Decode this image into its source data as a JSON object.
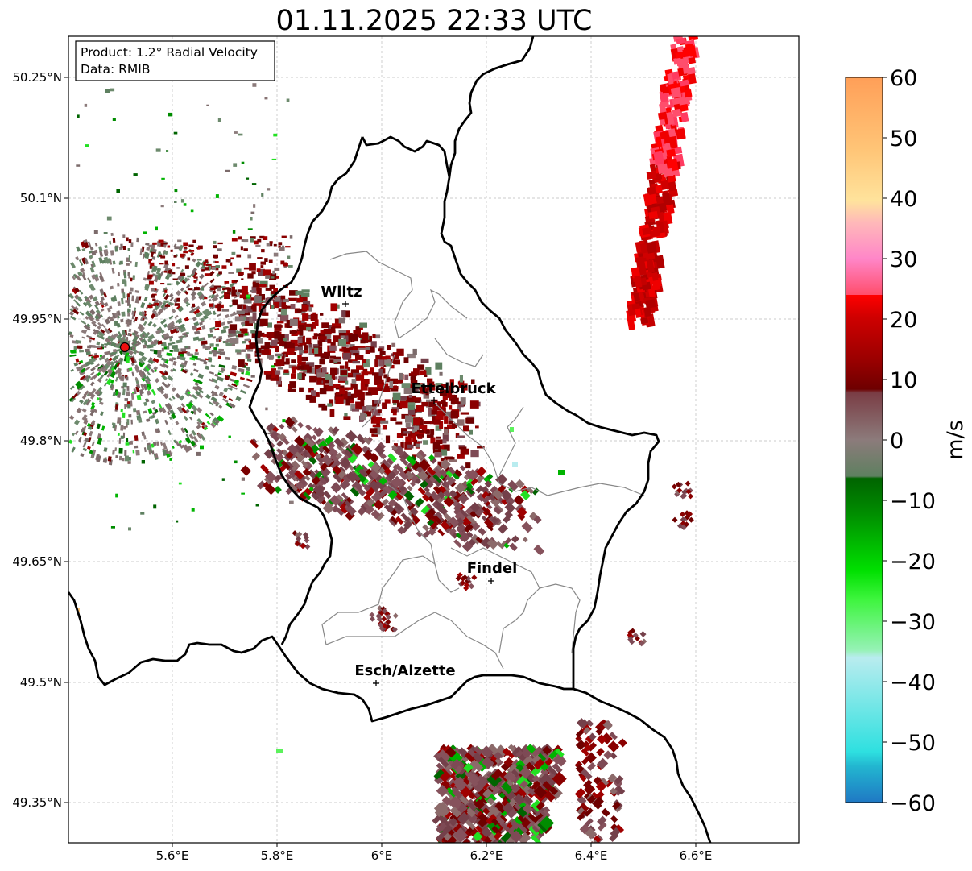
{
  "title": "01.11.2025 22:33 UTC",
  "info_box": {
    "product": "Product: 1.2° Radial Velocity",
    "data": "Data: RMIB"
  },
  "x_ticks": [
    "5.6°E",
    "5.8°E",
    "6°E",
    "6.2°E",
    "6.4°E",
    "6.6°E"
  ],
  "y_ticks": [
    "50.25°N",
    "50.1°N",
    "49.95°N",
    "49.8°N",
    "49.65°N",
    "49.5°N",
    "49.35°N"
  ],
  "cities": [
    {
      "name": "Wiltz"
    },
    {
      "name": "Ettelbruck"
    },
    {
      "name": "Findel"
    },
    {
      "name": "Esch/Alzette"
    }
  ],
  "colorbar": {
    "label": "m/s",
    "ticks": [
      "60",
      "50",
      "40",
      "30",
      "20",
      "10",
      "0",
      "−10",
      "−20",
      "−30",
      "−40",
      "−50",
      "−60"
    ],
    "range": [
      -60,
      60
    ],
    "colors": {
      "top_orange": "#ff9f58",
      "light_orange": "#ffc577",
      "pale_yellow": "#ffe39c",
      "pink": "#ff86c8",
      "rose": "#ff4e6c",
      "red": "#ef0000",
      "dark_red": "#7a0000",
      "mauve": "#7e4a55",
      "grey": "#8c7b7b",
      "grey_green": "#5e8060",
      "dark_green": "#006400",
      "green": "#00d600",
      "light_green": "#5cf25c",
      "pale_cyan": "#b9ecef",
      "cyan": "#2ee0e0",
      "blue": "#1f78c4"
    }
  },
  "radar_site_color": "#ee1111",
  "border_color": "#000000",
  "canton_color": "#888888"
}
